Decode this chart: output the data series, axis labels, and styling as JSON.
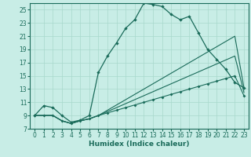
{
  "xlabel": "Humidex (Indice chaleur)",
  "xlim": [
    -0.5,
    23.5
  ],
  "ylim": [
    7,
    26
  ],
  "yticks": [
    7,
    9,
    11,
    13,
    15,
    17,
    19,
    21,
    23,
    25
  ],
  "xticks": [
    0,
    1,
    2,
    3,
    4,
    5,
    6,
    7,
    8,
    9,
    10,
    11,
    12,
    13,
    14,
    15,
    16,
    17,
    18,
    19,
    20,
    21,
    22,
    23
  ],
  "bg_color": "#c8ede6",
  "grid_color": "#a8d8cc",
  "line_color": "#1a6b5a",
  "curve1_x": [
    0,
    1,
    2,
    3,
    4,
    5,
    6,
    7,
    8,
    9,
    10,
    11,
    12,
    13,
    14,
    15,
    16,
    17,
    18,
    19,
    20,
    21,
    22,
    23
  ],
  "curve1_y": [
    9.0,
    10.5,
    10.2,
    9.0,
    8.0,
    8.3,
    9.0,
    15.5,
    18.0,
    20.0,
    22.2,
    23.5,
    26.0,
    25.8,
    25.5,
    24.3,
    23.5,
    24.0,
    21.5,
    19.0,
    17.5,
    16.0,
    14.0,
    13.2
  ],
  "curve2_x": [
    0,
    1,
    2,
    3,
    4,
    5,
    6,
    7,
    8,
    9,
    10,
    11,
    12,
    13,
    14,
    15,
    16,
    17,
    18,
    19,
    20,
    21,
    22,
    23
  ],
  "curve2_y": [
    9.0,
    9.0,
    9.0,
    8.2,
    7.8,
    8.2,
    8.5,
    9.0,
    9.4,
    9.8,
    10.2,
    10.6,
    11.0,
    11.4,
    11.8,
    12.2,
    12.6,
    13.0,
    13.4,
    13.8,
    14.2,
    14.6,
    15.0,
    12.0
  ],
  "curve3_x": [
    0,
    1,
    2,
    3,
    4,
    5,
    6,
    7,
    8,
    9,
    10,
    11,
    12,
    13,
    14,
    15,
    16,
    17,
    18,
    19,
    20,
    21,
    22,
    23
  ],
  "curve3_y": [
    9.0,
    9.0,
    9.0,
    8.2,
    7.8,
    8.2,
    8.5,
    9.0,
    9.6,
    10.2,
    10.8,
    11.4,
    12.0,
    12.6,
    13.2,
    13.8,
    14.4,
    15.0,
    15.6,
    16.2,
    16.8,
    17.4,
    18.0,
    12.5
  ],
  "curve4_x": [
    0,
    1,
    2,
    3,
    4,
    5,
    6,
    7,
    8,
    9,
    10,
    11,
    12,
    13,
    14,
    15,
    16,
    17,
    18,
    19,
    20,
    21,
    22,
    23
  ],
  "curve4_y": [
    9.0,
    9.0,
    9.0,
    8.2,
    7.8,
    8.2,
    8.5,
    9.0,
    9.8,
    10.6,
    11.4,
    12.2,
    13.0,
    13.8,
    14.6,
    15.4,
    16.2,
    17.0,
    17.8,
    18.6,
    19.4,
    20.2,
    21.0,
    13.2
  ],
  "tick_fontsize": 5.5,
  "label_fontsize": 6.5
}
